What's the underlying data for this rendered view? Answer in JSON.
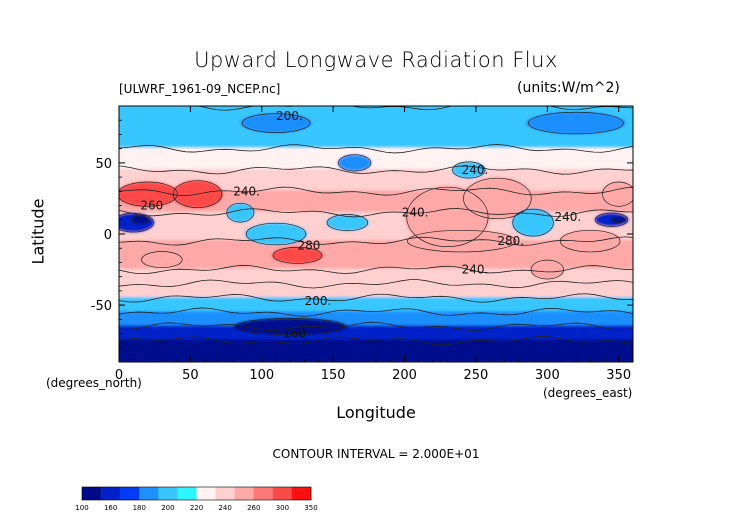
{
  "chart_data": {
    "type": "heatmap",
    "title": "Upward Longwave Radiation Flux",
    "subtitle_left": "[ULWRF_1961-09_NCEP.nc]",
    "subtitle_right": "(units:W/m^2)",
    "xlabel": "Longitude",
    "ylabel": "Latitude",
    "x_unit": "(degrees_east)",
    "y_unit": "(degrees_north)",
    "xlim": [
      0,
      360
    ],
    "ylim": [
      -90,
      90
    ],
    "x_ticks": [
      0,
      50,
      100,
      150,
      200,
      250,
      300,
      350
    ],
    "y_ticks": [
      -50,
      0,
      50
    ],
    "contour_interval_text": "CONTOUR INTERVAL = 2.000E+01",
    "colorbar": {
      "levels": [
        100,
        160,
        180,
        200,
        220,
        240,
        260,
        300,
        350
      ],
      "level_labels": [
        "100",
        "160",
        "180",
        "200",
        "220",
        "240",
        "260",
        "300",
        "350"
      ],
      "colors": [
        "#000b8c",
        "#0021c8",
        "#003cf5",
        "#1e8fff",
        "#39c6ff",
        "#2cf5ff",
        "#fff2f2",
        "#ffd0d0",
        "#ffa8a8",
        "#ff7878",
        "#ff4a4a",
        "#ff0f0f"
      ]
    },
    "bands": [
      {
        "lat_range": [
          60,
          90
        ],
        "value": 215
      },
      {
        "lat_range": [
          45,
          60
        ],
        "value": 235
      },
      {
        "lat_range": [
          30,
          45
        ],
        "value": 255
      },
      {
        "lat_range": [
          15,
          30
        ],
        "value": 275
      },
      {
        "lat_range": [
          -5,
          15
        ],
        "value": 245
      },
      {
        "lat_range": [
          -25,
          -5
        ],
        "value": 275
      },
      {
        "lat_range": [
          -35,
          -25
        ],
        "value": 255
      },
      {
        "lat_range": [
          -45,
          -35
        ],
        "value": 240
      },
      {
        "lat_range": [
          -55,
          -45
        ],
        "value": 215
      },
      {
        "lat_range": [
          -65,
          -55
        ],
        "value": 190
      },
      {
        "lat_range": [
          -75,
          -65
        ],
        "value": 170
      },
      {
        "lat_range": [
          -90,
          -75
        ],
        "value": 150
      }
    ],
    "features": [
      {
        "lon": 20,
        "lat": 28,
        "rx": 22,
        "ry": 9,
        "value": 305
      },
      {
        "lon": 55,
        "lat": 28,
        "rx": 18,
        "ry": 10,
        "value": 300
      },
      {
        "lon": 10,
        "lat": 8,
        "rx": 15,
        "ry": 7,
        "value": 170
      },
      {
        "lon": 15,
        "lat": 10,
        "rx": 6,
        "ry": 3,
        "value": 150
      },
      {
        "lon": 125,
        "lat": -15,
        "rx": 18,
        "ry": 6,
        "value": 305
      },
      {
        "lon": 30,
        "lat": -18,
        "rx": 15,
        "ry": 6,
        "value": 295
      },
      {
        "lon": 110,
        "lat": 0,
        "rx": 22,
        "ry": 8,
        "value": 215
      },
      {
        "lon": 85,
        "lat": 15,
        "rx": 10,
        "ry": 7,
        "value": 210
      },
      {
        "lon": 160,
        "lat": 8,
        "rx": 15,
        "ry": 6,
        "value": 200
      },
      {
        "lon": 230,
        "lat": 12,
        "rx": 30,
        "ry": 22,
        "value": 280
      },
      {
        "lon": 265,
        "lat": 25,
        "rx": 25,
        "ry": 15,
        "value": 290
      },
      {
        "lon": 240,
        "lat": -5,
        "rx": 40,
        "ry": 8,
        "value": 295
      },
      {
        "lon": 300,
        "lat": -25,
        "rx": 12,
        "ry": 7,
        "value": 260
      },
      {
        "lon": 330,
        "lat": -5,
        "rx": 22,
        "ry": 8,
        "value": 290
      },
      {
        "lon": 350,
        "lat": 28,
        "rx": 12,
        "ry": 9,
        "value": 295
      },
      {
        "lon": 345,
        "lat": 10,
        "rx": 12,
        "ry": 5,
        "value": 175
      },
      {
        "lon": 350,
        "lat": 10,
        "rx": 5,
        "ry": 2,
        "value": 150
      },
      {
        "lon": 290,
        "lat": 8,
        "rx": 15,
        "ry": 10,
        "value": 215
      },
      {
        "lon": 165,
        "lat": 50,
        "rx": 12,
        "ry": 6,
        "value": 195
      },
      {
        "lon": 245,
        "lat": 45,
        "rx": 12,
        "ry": 6,
        "value": 200
      },
      {
        "lon": 110,
        "lat": 78,
        "rx": 25,
        "ry": 7,
        "value": 195
      },
      {
        "lon": 320,
        "lat": 78,
        "rx": 35,
        "ry": 8,
        "value": 195
      },
      {
        "lon": 120,
        "lat": -65,
        "rx": 40,
        "ry": 6,
        "value": 150
      }
    ],
    "contour_labels": [
      {
        "text": "200.",
        "lon": 110,
        "lat": 83
      },
      {
        "text": "240.",
        "lon": 240,
        "lat": 45
      },
      {
        "text": "260",
        "lon": 15,
        "lat": 20
      },
      {
        "text": "240.",
        "lon": 80,
        "lat": 30
      },
      {
        "text": "240.",
        "lon": 198,
        "lat": 15
      },
      {
        "text": "240.",
        "lon": 305,
        "lat": 12
      },
      {
        "text": "280",
        "lon": 125,
        "lat": -8
      },
      {
        "text": "280.",
        "lon": 265,
        "lat": -5
      },
      {
        "text": "240.",
        "lon": 240,
        "lat": -25
      },
      {
        "text": "200.",
        "lon": 130,
        "lat": -47
      },
      {
        "text": "160",
        "lon": 115,
        "lat": -70
      }
    ]
  }
}
